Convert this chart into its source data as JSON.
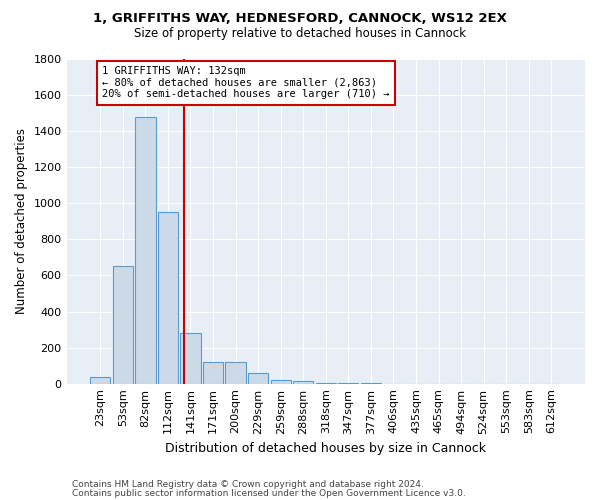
{
  "title_line1": "1, GRIFFITHS WAY, HEDNESFORD, CANNOCK, WS12 2EX",
  "title_line2": "Size of property relative to detached houses in Cannock",
  "xlabel": "Distribution of detached houses by size in Cannock",
  "ylabel": "Number of detached properties",
  "bin_labels": [
    "23sqm",
    "53sqm",
    "82sqm",
    "112sqm",
    "141sqm",
    "171sqm",
    "200sqm",
    "229sqm",
    "259sqm",
    "288sqm",
    "318sqm",
    "347sqm",
    "377sqm",
    "406sqm",
    "435sqm",
    "465sqm",
    "494sqm",
    "524sqm",
    "553sqm",
    "583sqm",
    "612sqm"
  ],
  "bar_heights": [
    35,
    650,
    1480,
    950,
    280,
    120,
    120,
    60,
    20,
    15,
    5,
    2,
    2,
    1,
    1,
    1,
    0,
    0,
    0,
    0,
    0
  ],
  "bar_color": "#ccdae8",
  "bar_edgecolor": "#5b9bd5",
  "property_line_x": 3.72,
  "vline_color": "#cc0000",
  "annotation_title": "1 GRIFFITHS WAY: 132sqm",
  "annotation_line2": "← 80% of detached houses are smaller (2,863)",
  "annotation_line3": "20% of semi-detached houses are larger (710) →",
  "ylim": [
    0,
    1800
  ],
  "yticks": [
    0,
    200,
    400,
    600,
    800,
    1000,
    1200,
    1400,
    1600,
    1800
  ],
  "footnote1": "Contains HM Land Registry data © Crown copyright and database right 2024.",
  "footnote2": "Contains public sector information licensed under the Open Government Licence v3.0.",
  "bg_color": "#e8eef5",
  "grid_color": "#ffffff"
}
